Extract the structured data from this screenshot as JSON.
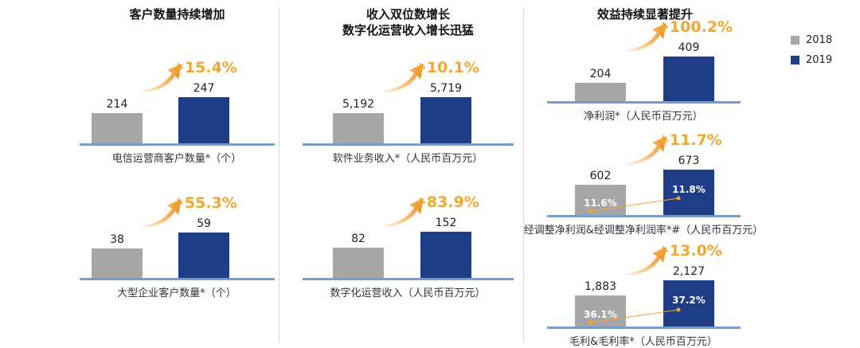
{
  "panels": [
    {
      "title": "客户数量持续增加"
    },
    {
      "title_line1": "收入双位数增长",
      "title_line2": "数字化运营收入增长迅猛"
    },
    {
      "title": "效益持续显著提升"
    }
  ],
  "legend": [
    {
      "label": "2018",
      "color": "#a6a6a6"
    },
    {
      "label": "2019",
      "color": "#1f3d87"
    }
  ],
  "colors": {
    "bar_2018": "#a6a6a6",
    "bar_2019": "#1f3d87",
    "growth": "#f0a830",
    "baseline": "#7a9cc8"
  },
  "chart_data": [
    {
      "type": "bar",
      "title": "电信运营商客户数量*（个）",
      "categories": [
        "2018",
        "2019"
      ],
      "values": [
        214,
        247
      ],
      "value_labels": [
        "214",
        "247"
      ],
      "growth": "+15.4%"
    },
    {
      "type": "bar",
      "title": "大型企业客户数量*（个）",
      "categories": [
        "2018",
        "2019"
      ],
      "values": [
        38,
        59
      ],
      "value_labels": [
        "38",
        "59"
      ],
      "growth": "+55.3%"
    },
    {
      "type": "bar",
      "title": "软件业务收入*（人民币百万元）",
      "categories": [
        "2018",
        "2019"
      ],
      "values": [
        5192,
        5719
      ],
      "value_labels": [
        "5,192",
        "5,719"
      ],
      "growth": "+10.1%"
    },
    {
      "type": "bar",
      "title": "数字化运营收入（人民币百万元）",
      "categories": [
        "2018",
        "2019"
      ],
      "values": [
        82,
        152
      ],
      "value_labels": [
        "82",
        "152"
      ],
      "growth": "+83.9%"
    },
    {
      "type": "bar",
      "title": "净利润*（人民币百万元）",
      "categories": [
        "2018",
        "2019"
      ],
      "values": [
        204,
        409
      ],
      "value_labels": [
        "204",
        "409"
      ],
      "growth": "+100.2%"
    },
    {
      "type": "bar",
      "title": "经调整净利润&经调整净利润率*#（人民币百万元）",
      "categories": [
        "2018",
        "2019"
      ],
      "values": [
        602,
        673
      ],
      "value_labels": [
        "602",
        "673"
      ],
      "growth": "+11.7%",
      "rates": [
        "11.6%",
        "11.8%"
      ]
    },
    {
      "type": "bar",
      "title": "毛利&毛利率*（人民币百万元）",
      "categories": [
        "2018",
        "2019"
      ],
      "values": [
        1883,
        2127
      ],
      "value_labels": [
        "1,883",
        "2,127"
      ],
      "growth": "+13.0%",
      "rates": [
        "36.1%",
        "37.2%"
      ]
    }
  ]
}
